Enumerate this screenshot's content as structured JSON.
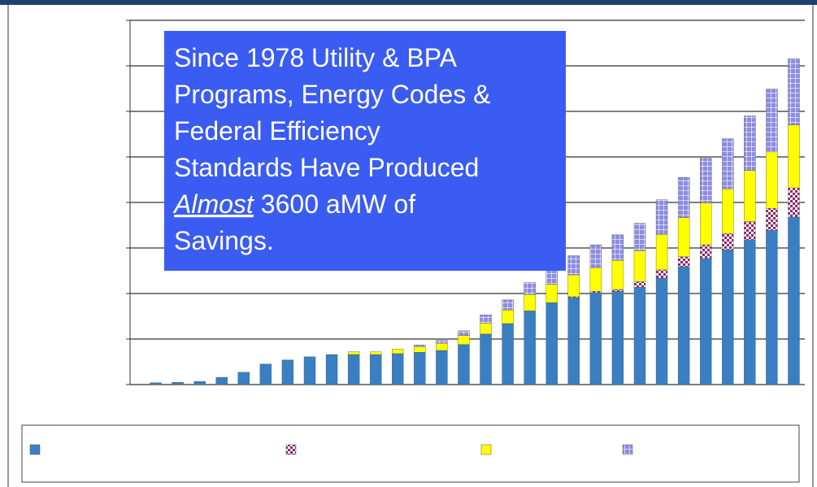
{
  "chart_data": {
    "type": "stacked_bar",
    "annotation": {
      "lines": [
        "Since 1978 Utility & BPA",
        "Programs, Energy Codes &",
        "Federal Efficiency",
        "Standards Have Produced"
      ],
      "emphasis": "Almost",
      "continuation": "3600 aMW of",
      "last": "Savings."
    },
    "ylim": [
      0,
      4000
    ],
    "yticks": [
      0,
      500,
      1000,
      1500,
      2000,
      2500,
      3000,
      3500,
      4000
    ],
    "grid": true,
    "series": [
      {
        "color": "#3a7fc1",
        "pattern": "solid",
        "values": [
          20,
          25,
          35,
          80,
          135,
          225,
          270,
          305,
          330,
          330,
          330,
          340,
          355,
          375,
          440,
          555,
          670,
          810,
          900,
          955,
          1010,
          1025,
          1070,
          1170,
          1295,
          1385,
          1480,
          1590,
          1695,
          1840
        ]
      },
      {
        "color": "#8b2a6b",
        "pattern": "checker",
        "values": [
          0,
          0,
          0,
          0,
          0,
          0,
          0,
          0,
          0,
          0,
          0,
          0,
          0,
          0,
          0,
          0,
          0,
          0,
          0,
          10,
          15,
          20,
          60,
          90,
          110,
          150,
          180,
          200,
          240,
          320
        ]
      },
      {
        "color": "#ffff00",
        "pattern": "solid",
        "values": [
          0,
          0,
          0,
          0,
          0,
          0,
          0,
          0,
          0,
          30,
          30,
          50,
          60,
          80,
          100,
          120,
          150,
          180,
          200,
          240,
          260,
          320,
          340,
          390,
          430,
          460,
          490,
          560,
          620,
          690
        ]
      },
      {
        "color": "#8c8ce0",
        "pattern": "grid",
        "values": [
          0,
          0,
          0,
          0,
          0,
          0,
          0,
          0,
          0,
          0,
          0,
          0,
          20,
          30,
          50,
          90,
          110,
          130,
          180,
          210,
          250,
          280,
          300,
          380,
          440,
          490,
          550,
          600,
          690,
          730
        ]
      }
    ]
  }
}
